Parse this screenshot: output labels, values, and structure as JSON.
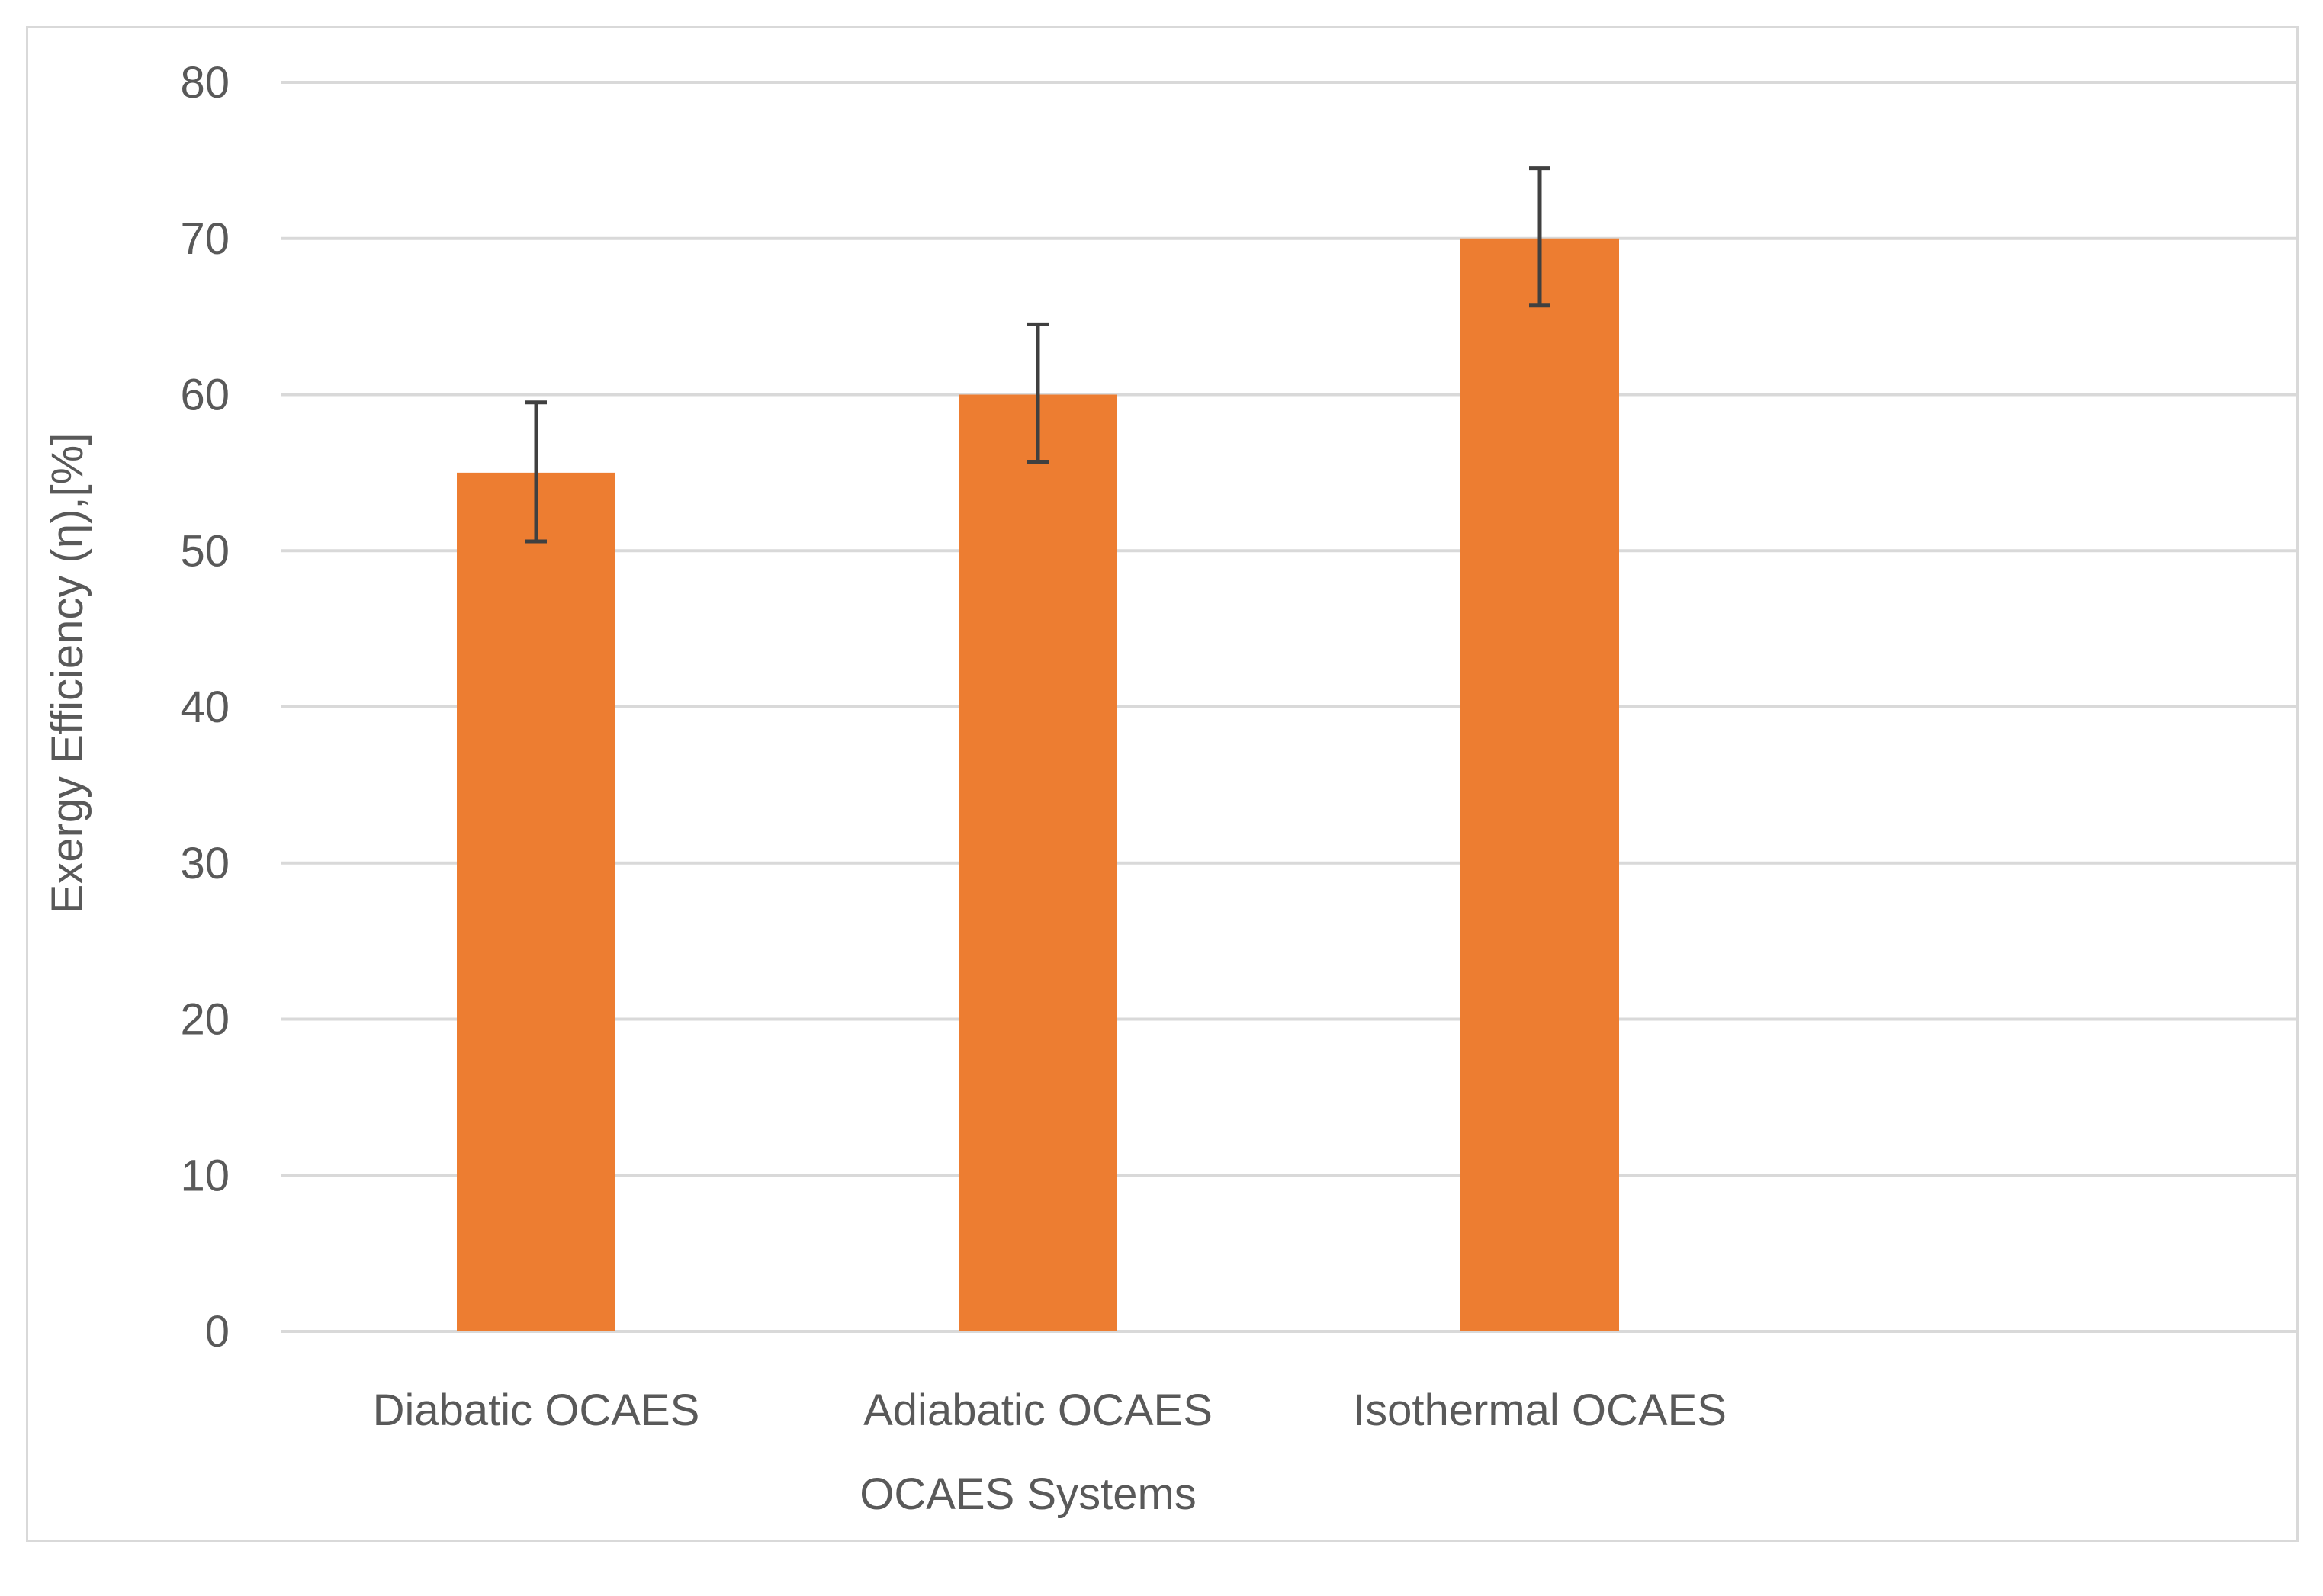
{
  "chart_data": {
    "type": "bar",
    "title": "",
    "categories": [
      "Diabatic OCAES",
      "Adiabatic OCAES",
      "Isothermal OCAES"
    ],
    "series": [
      {
        "name": "Exergy Efficiency",
        "values": [
          55,
          60,
          70
        ],
        "error_plus": [
          4.5,
          4.5,
          4.5
        ],
        "error_minus": [
          4.4,
          4.3,
          4.3
        ]
      }
    ],
    "xlabel": "OCAES Systems",
    "ylabel": "Exergy Efficiency (η),[%]",
    "ylim": [
      0,
      80
    ],
    "yticks": [
      0,
      10,
      20,
      30,
      40,
      50,
      60,
      70,
      80
    ],
    "grid": true,
    "legend": "none",
    "colors": {
      "bar": "#ED7D31",
      "grid": "#d9d9d9",
      "error_bar": "#404040",
      "text": "#595959"
    }
  }
}
